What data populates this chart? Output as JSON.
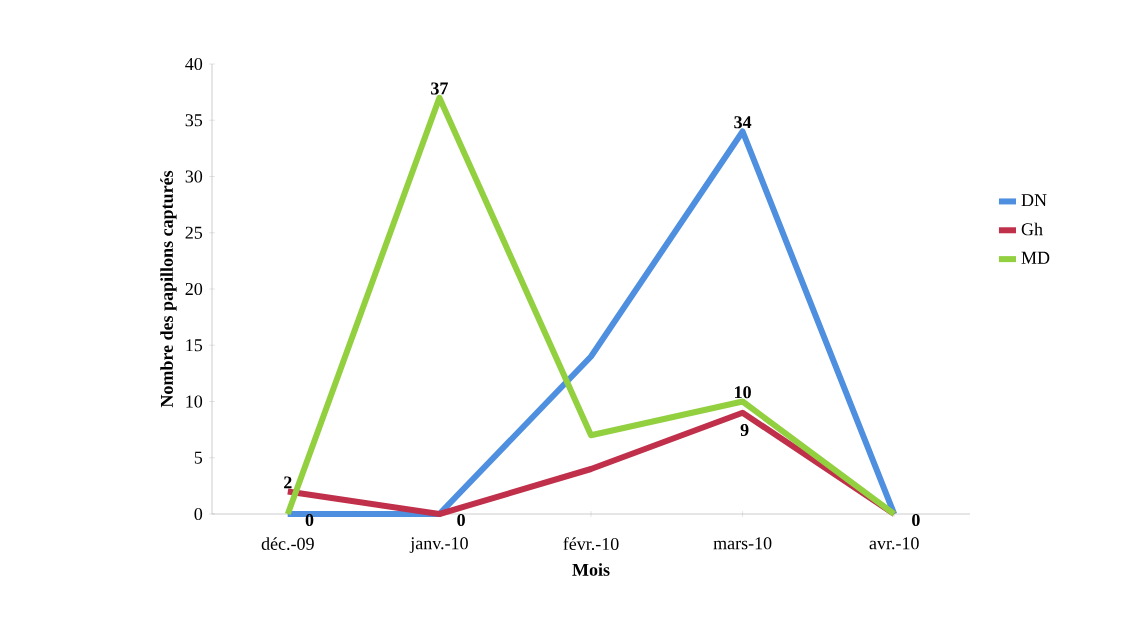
{
  "chart_data": {
    "type": "line",
    "xlabel": "Mois",
    "ylabel": "Nombre des papillons capturés",
    "categories": [
      "déc.-09",
      "janv.-10",
      "févr.-10",
      "mars-10",
      "avr.-10"
    ],
    "series": [
      {
        "name": "DN",
        "color": "#4f8fe0",
        "values": [
          0,
          0,
          14,
          34,
          0
        ],
        "value_labels": [
          "0",
          null,
          null,
          "34",
          null
        ]
      },
      {
        "name": "Gh",
        "color": "#c0304a",
        "values": [
          2,
          0,
          4,
          9,
          0
        ],
        "value_labels": [
          "2",
          "0",
          null,
          "9",
          null
        ]
      },
      {
        "name": "MD",
        "color": "#92d040",
        "values": [
          0,
          37,
          7,
          10,
          0
        ],
        "value_labels": [
          null,
          "37",
          null,
          "10",
          "0"
        ]
      }
    ],
    "ylim": [
      0,
      40
    ],
    "yticks": [
      0,
      5,
      10,
      15,
      20,
      25,
      30,
      35,
      40
    ],
    "legend": "right"
  }
}
